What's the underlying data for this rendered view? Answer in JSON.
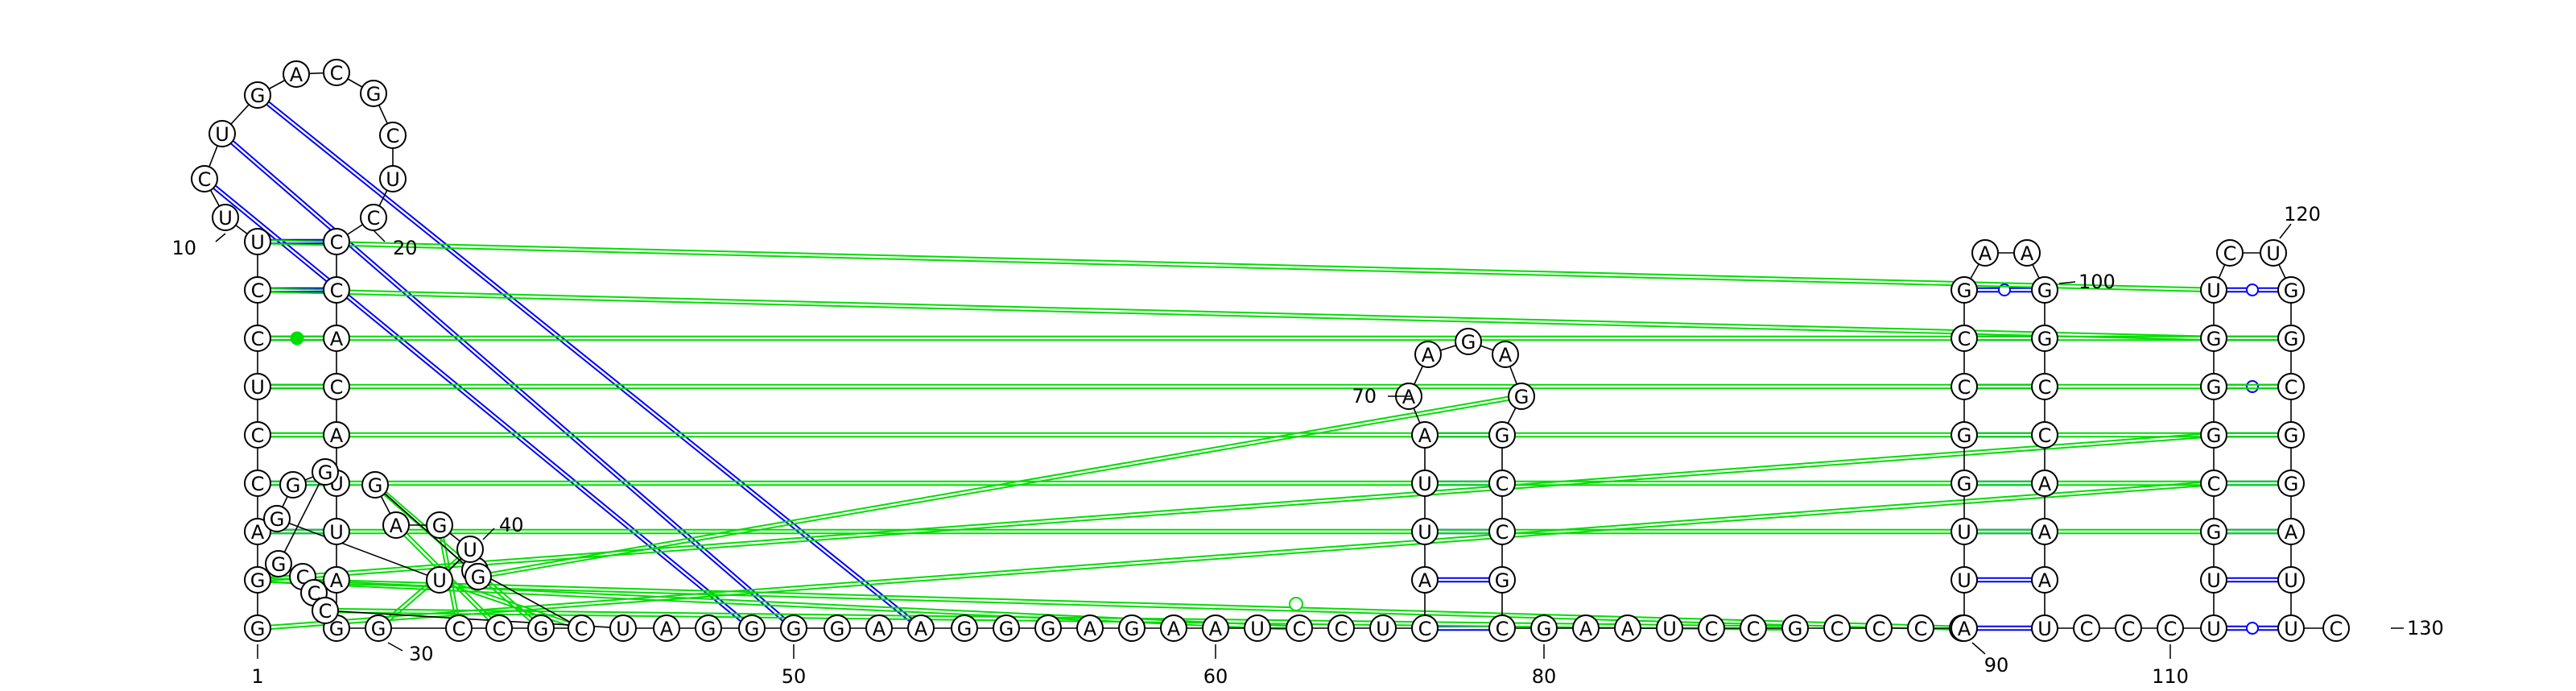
{
  "colors": {
    "canonical_pair": "#0000ff",
    "noncanonical_pair": "#00dd00",
    "wobble_marker": "#0000ff",
    "backbone": "#000000"
  },
  "sequence": "GGACCUCCUUCUGACGCUCCCACAUUAGGCCGCCGGAGUUGGGGCCCUAGGGGAAGGGAGAAUCCUCAUUAAAGAGGCCGCGAAUCCGCCCGAUUGGCCGAAGGCCAAAUCCCUUGCGGGUCUGGCGGAUUC",
  "numbers": [
    "1",
    "10",
    "20",
    "30",
    "40",
    "50",
    "60",
    "70",
    "80",
    "90",
    "100",
    "110",
    "120",
    "130"
  ]
}
